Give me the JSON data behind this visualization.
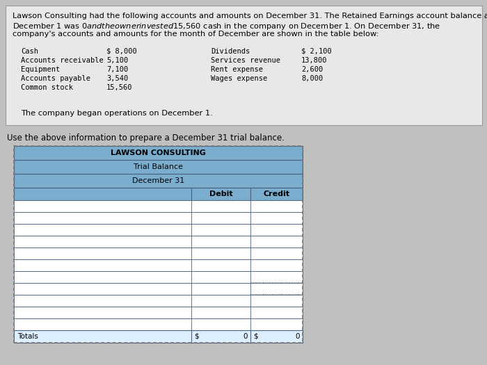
{
  "para_line1": "Lawson Consulting had the following accounts and amounts on December 31. The Retained Earnings account balance at",
  "para_line2": "December 1 was $0 and the owner invested $15,560 cash in the company on December 1. On December 31, the",
  "para_line3": "company's accounts and amounts for the month of December are shown in the table below:",
  "accounts_left": [
    "Cash",
    "Accounts receivable",
    "Equipment",
    "Accounts payable",
    "Common stock"
  ],
  "amounts_left": [
    "$ 8,000",
    "5,100",
    "7,100",
    "3,540",
    "15,560"
  ],
  "accounts_right": [
    "Dividends",
    "Services revenue",
    "Rent expense",
    "Wages expense"
  ],
  "amounts_right": [
    "$ 2,100",
    "13,800",
    "2,600",
    "8,000"
  ],
  "footer_note": "The company began operations on December 1.",
  "instruction": "Use the above information to prepare a December 31 trial balance.",
  "table_title1": "LAWSON CONSULTING",
  "table_title2": "Trial Balance",
  "table_title3": "December 31",
  "col_header1": "Debit",
  "col_header2": "Credit",
  "totals_label": "Totals",
  "totals_debit_sym": "$",
  "totals_debit_val": "0",
  "totals_credit_sym": "$",
  "totals_credit_val": "0",
  "num_data_rows": 11,
  "table_header_bg": "#7aadce",
  "table_row_bg": "#ffffff",
  "table_border_color": "#4a6080",
  "info_box_bg": "#e8e8e8",
  "info_box_border": "#999999",
  "outer_bg": "#c0c0c0",
  "dotted_rows": [
    7,
    8
  ],
  "totals_row_bg": "#ddeeff"
}
